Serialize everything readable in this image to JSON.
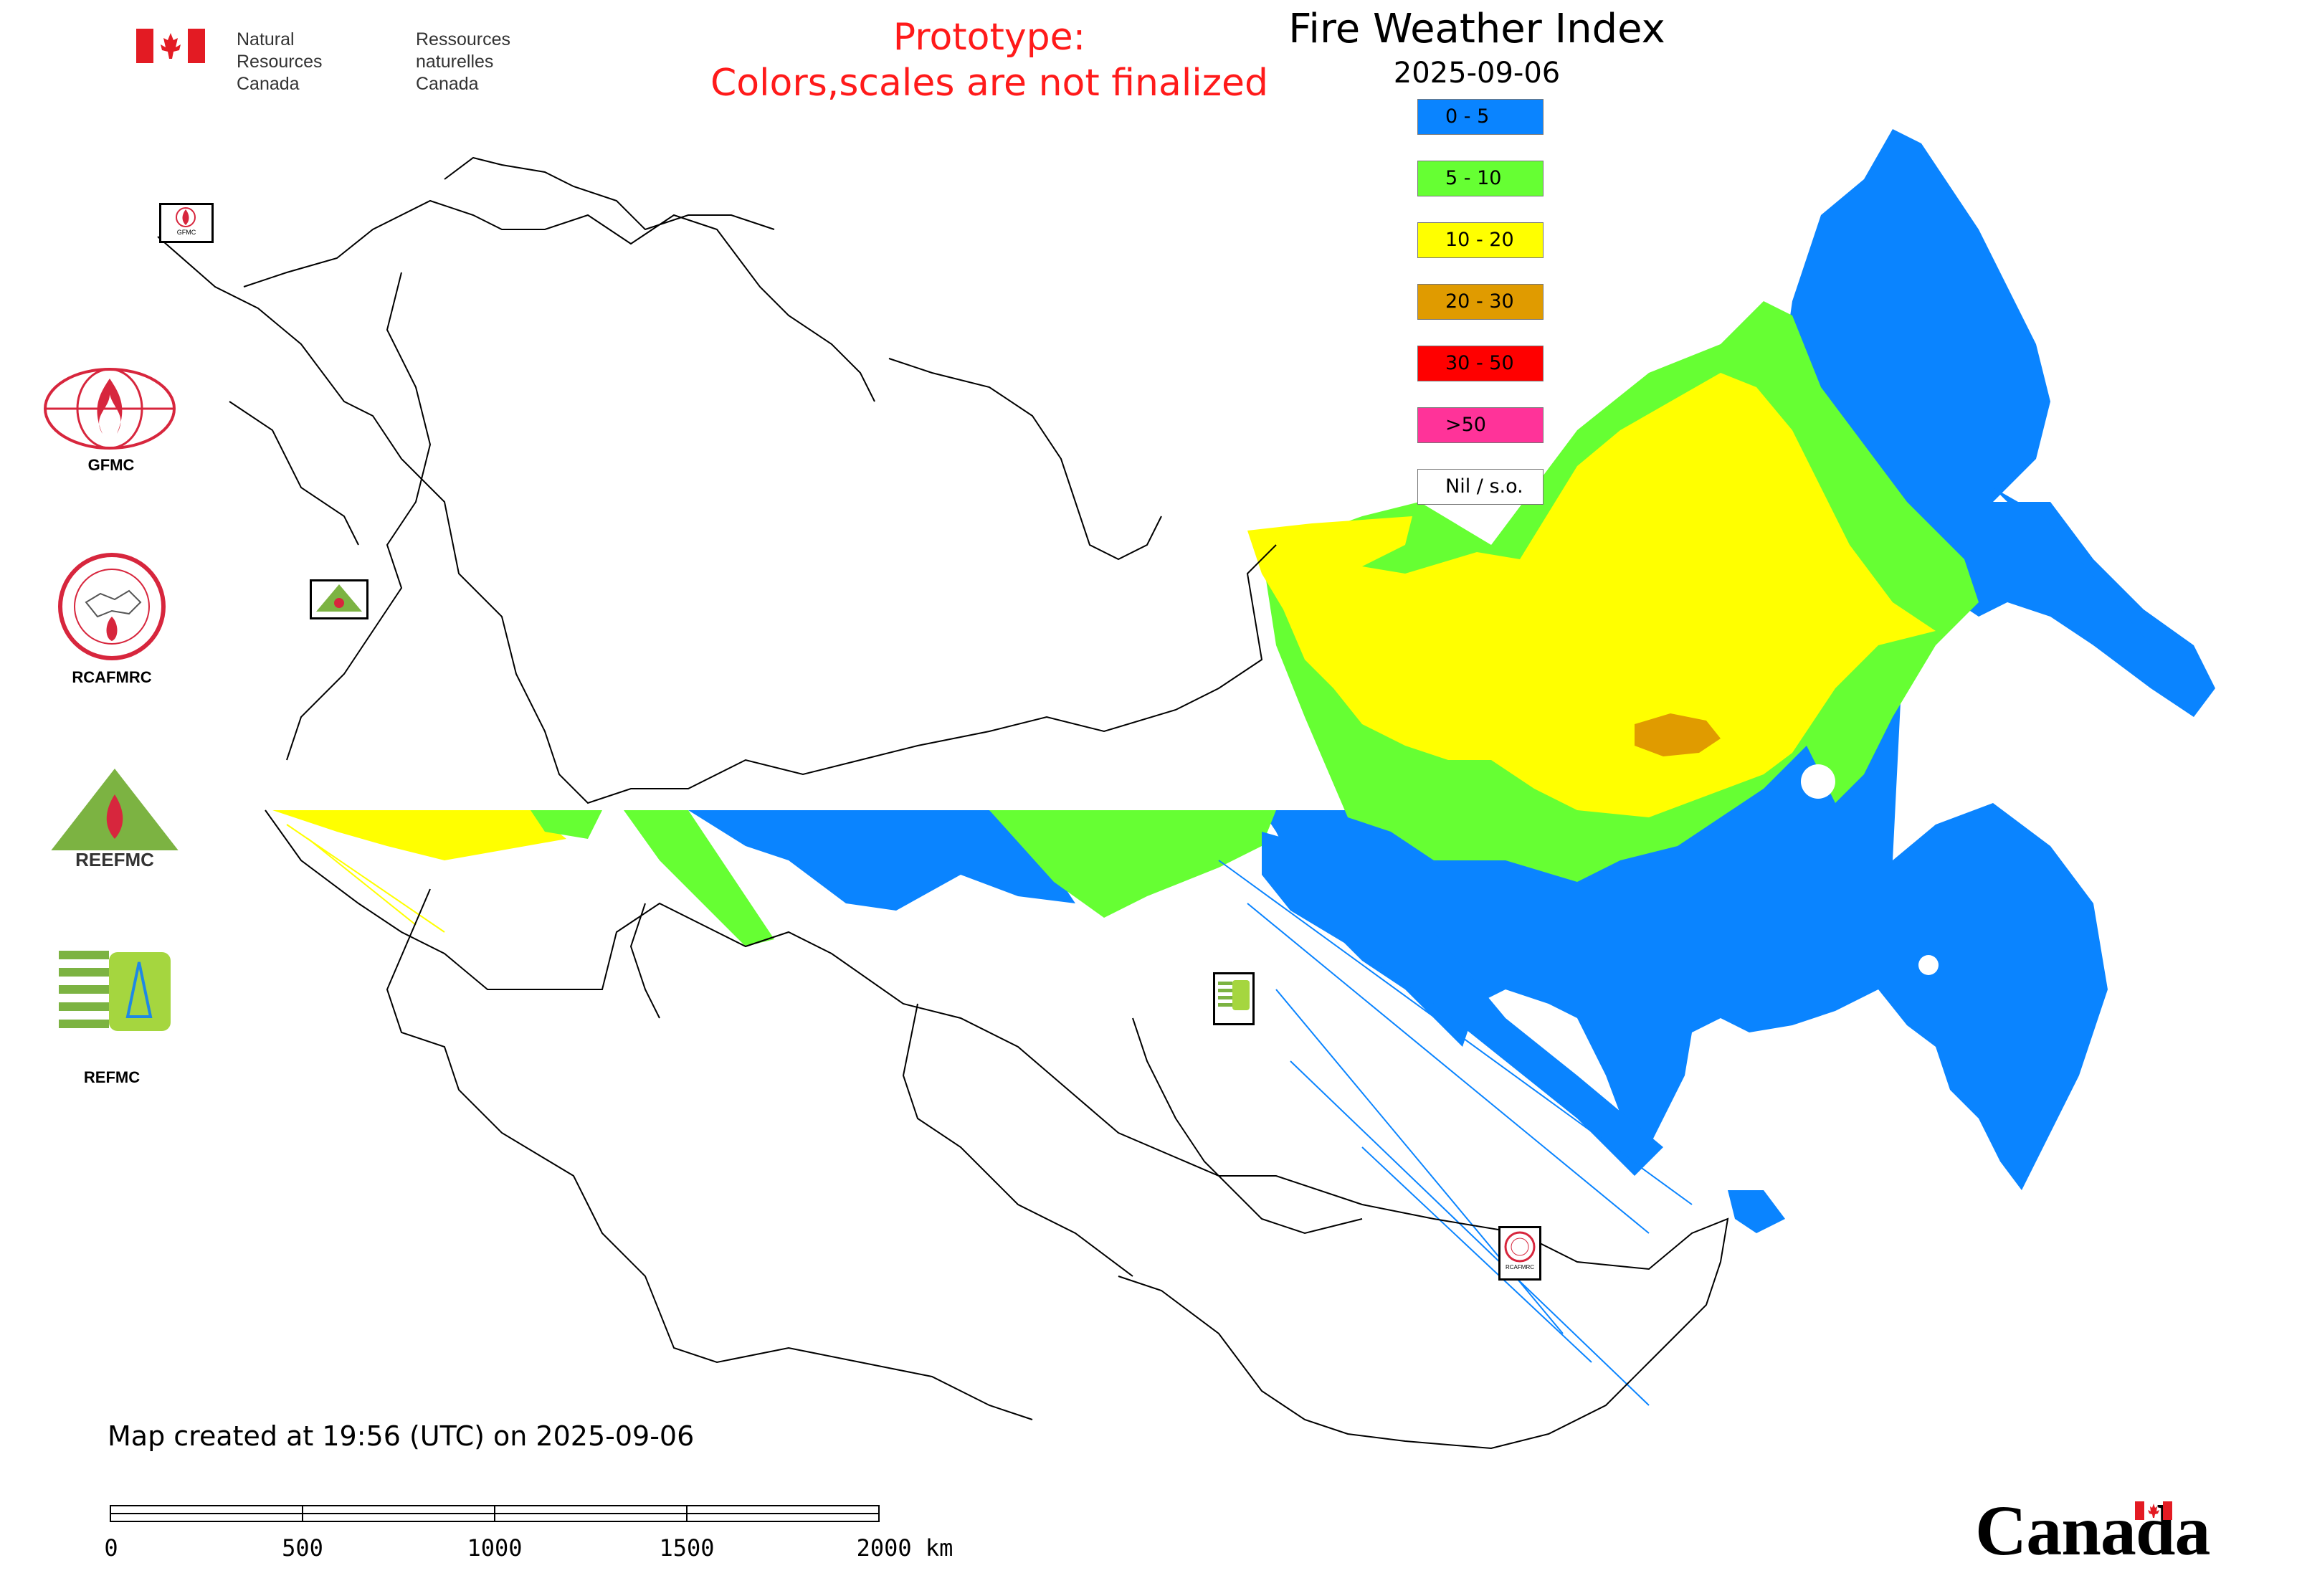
{
  "header": {
    "department_en": "Natural Resources\nCanada",
    "department_fr": "Ressources naturelles\nCanada",
    "prototype_line1": "Prototype:",
    "prototype_line2": "Colors,scales are not finalized"
  },
  "legend": {
    "title": "Fire Weather Index",
    "date": "2025-09-06",
    "classes": [
      {
        "label": "0 - 5",
        "color": "#0a84ff"
      },
      {
        "label": "5 - 10",
        "color": "#66ff33"
      },
      {
        "label": "10 - 20",
        "color": "#ffff00"
      },
      {
        "label": "20 - 30",
        "color": "#e09b00"
      },
      {
        "label": "30 - 50",
        "color": "#ff0000"
      },
      {
        "label": ">50",
        "color": "#ff3399"
      },
      {
        "label": "Nil / s.o.",
        "color": "#ffffff"
      }
    ]
  },
  "organizations": [
    {
      "label": "GFMC",
      "icon": "gfmc-logo-icon"
    },
    {
      "label": "RCAFMRC",
      "icon": "rcafmrc-logo-icon"
    },
    {
      "label": "",
      "icon": "reefmc-logo-icon",
      "logo_text": "REEFMC"
    },
    {
      "label": "REFMC",
      "icon": "refmc-logo-icon"
    }
  ],
  "small_marker_labels": [
    "GFMC",
    "RCAFMRC"
  ],
  "footer": {
    "created": "Map created at 19:56 (UTC) on 2025-09-06"
  },
  "scale_bar": {
    "ticks": [
      "0",
      "500",
      "1000",
      "1500",
      "2000 km"
    ]
  },
  "wordmark": "Canada",
  "colors": {
    "boundary": "#000000",
    "marker_red": "#d7263d",
    "marker_green": "#7cb342"
  }
}
